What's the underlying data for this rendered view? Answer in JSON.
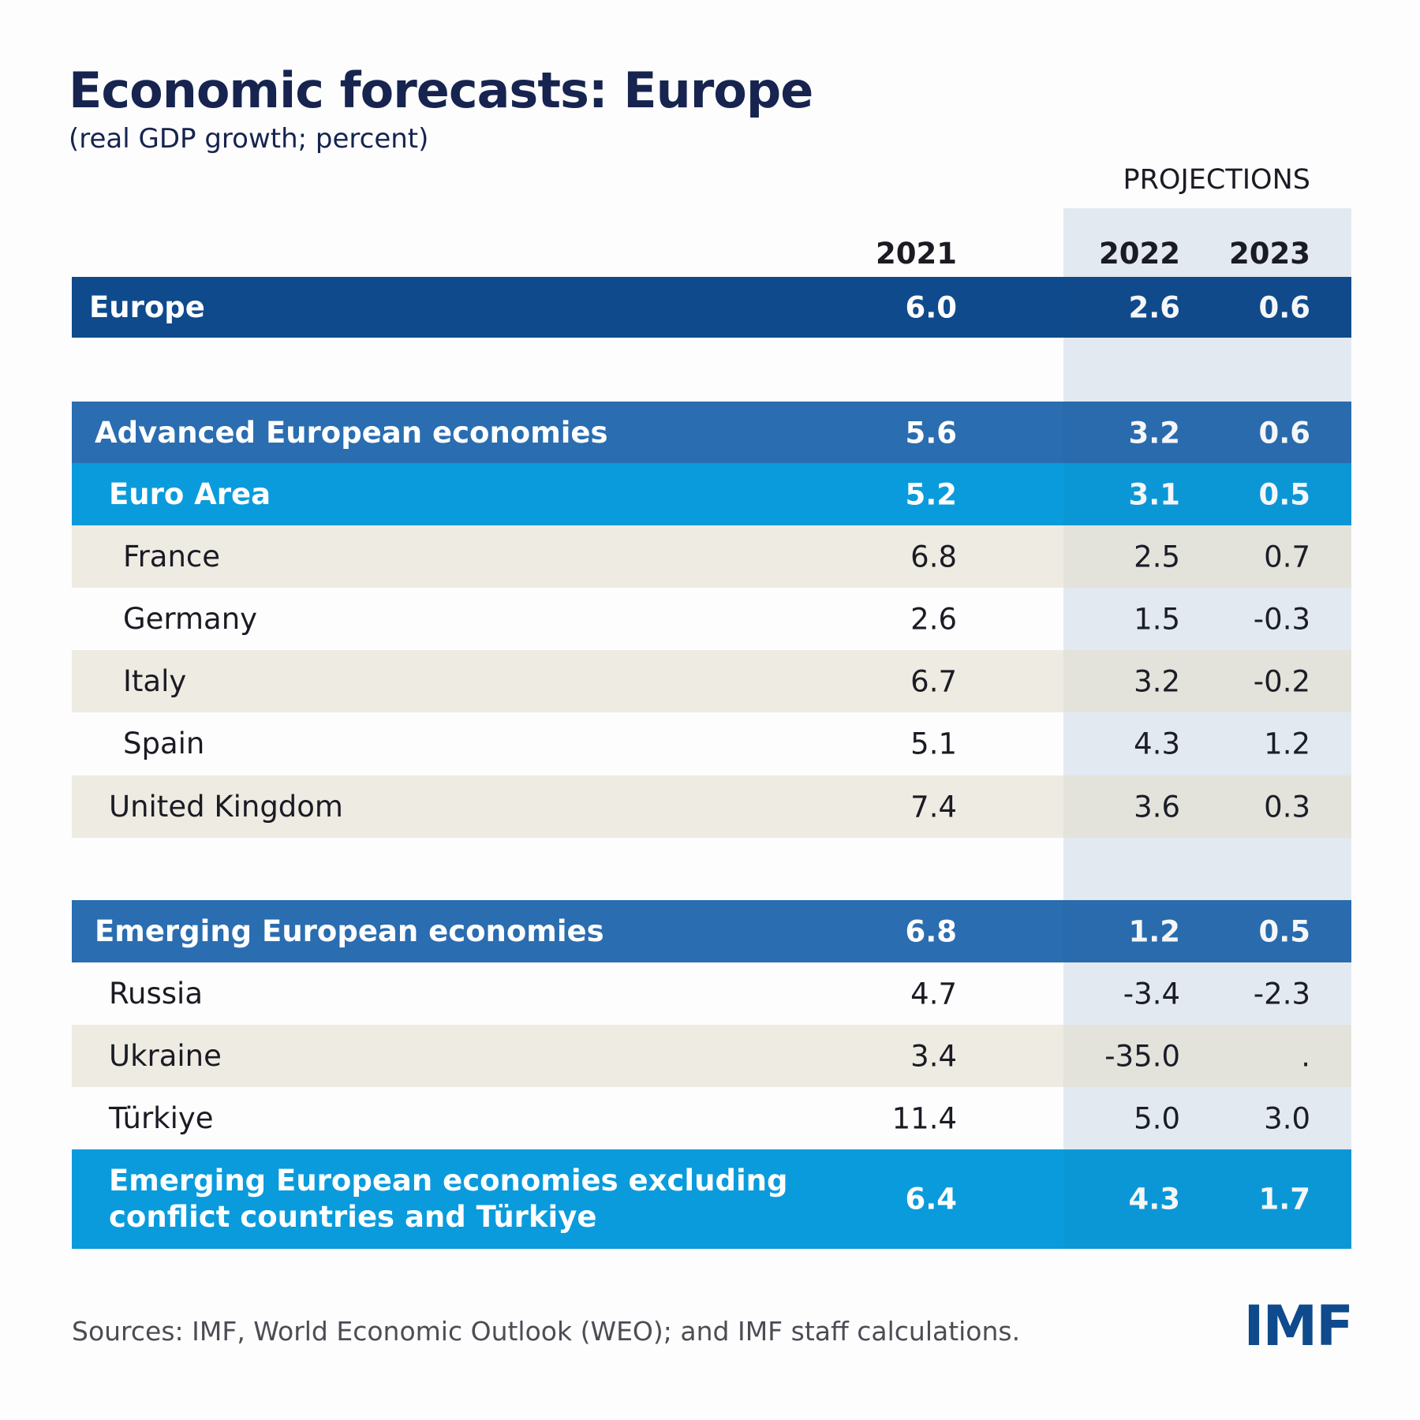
{
  "header": {
    "title": "Economic forecasts: Europe",
    "subtitle": "(real GDP growth; percent)"
  },
  "table": {
    "group_label": "PROJECTIONS",
    "columns": [
      "2021",
      "2022",
      "2023"
    ],
    "rows": [
      {
        "label": "Europe",
        "values": [
          "6.0",
          "2.6",
          "0.6"
        ]
      },
      {
        "label": "Advanced European economies",
        "values": [
          "5.6",
          "3.2",
          "0.6"
        ]
      },
      {
        "label": "Euro Area",
        "values": [
          "5.2",
          "3.1",
          "0.5"
        ]
      },
      {
        "label": "France",
        "values": [
          "6.8",
          "2.5",
          "0.7"
        ]
      },
      {
        "label": "Germany",
        "values": [
          "2.6",
          "1.5",
          "-0.3"
        ]
      },
      {
        "label": "Italy",
        "values": [
          "6.7",
          "3.2",
          "-0.2"
        ]
      },
      {
        "label": "Spain",
        "values": [
          "5.1",
          "4.3",
          "1.2"
        ]
      },
      {
        "label": "United Kingdom",
        "values": [
          "7.4",
          "3.6",
          "0.3"
        ]
      },
      {
        "label": "Emerging European economies",
        "values": [
          "6.8",
          "1.2",
          "0.5"
        ]
      },
      {
        "label": "Russia",
        "values": [
          "4.7",
          "-3.4",
          "-2.3"
        ]
      },
      {
        "label": "Ukraine",
        "values": [
          "3.4",
          "-35.0",
          "."
        ]
      },
      {
        "label": "Türkiye",
        "values": [
          "11.4",
          "5.0",
          "3.0"
        ]
      },
      {
        "label": "Emerging European economies excluding conflict countries and Türkiye",
        "values": [
          "6.4",
          "4.3",
          "1.7"
        ]
      }
    ]
  },
  "footer": {
    "source": "Sources: IMF, World Economic Outlook (WEO); and IMF staff calculations.",
    "logo": "IMF"
  }
}
